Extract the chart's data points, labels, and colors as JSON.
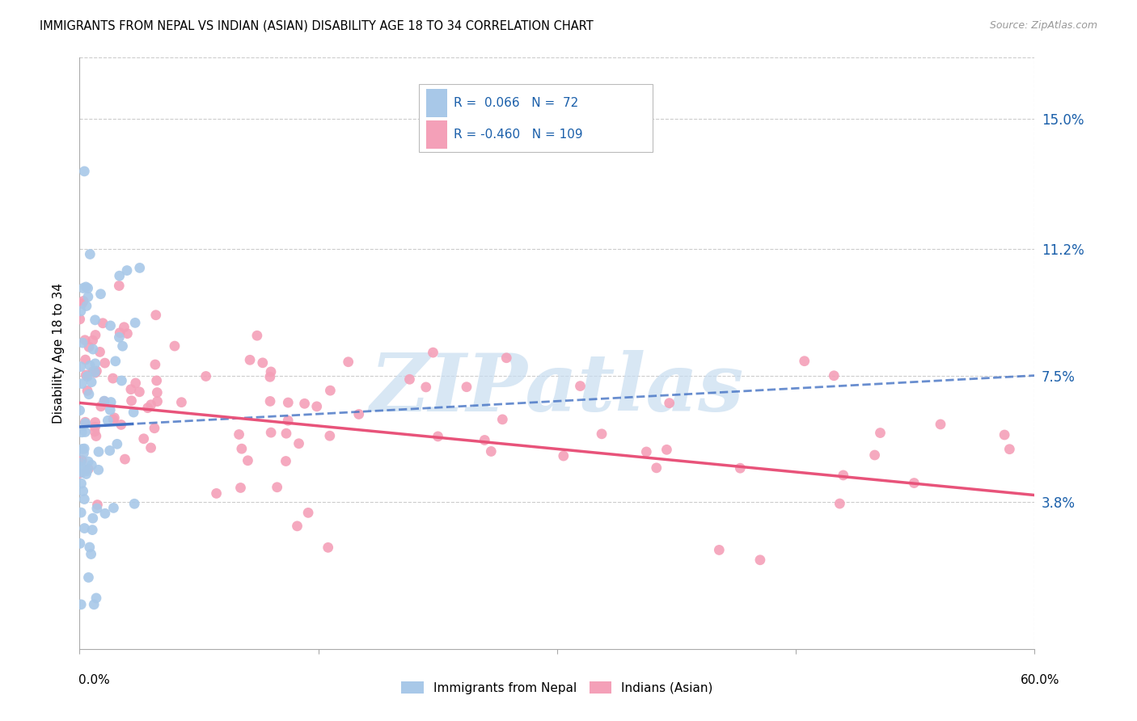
{
  "title": "IMMIGRANTS FROM NEPAL VS INDIAN (ASIAN) DISABILITY AGE 18 TO 34 CORRELATION CHART",
  "source": "Source: ZipAtlas.com",
  "ylabel": "Disability Age 18 to 34",
  "ytick_labels": [
    "3.8%",
    "7.5%",
    "11.2%",
    "15.0%"
  ],
  "ytick_values": [
    0.038,
    0.075,
    0.112,
    0.15
  ],
  "xlim": [
    0.0,
    0.6
  ],
  "ylim": [
    -0.005,
    0.168
  ],
  "nepal_R": 0.066,
  "nepal_N": 72,
  "indian_R": -0.46,
  "indian_N": 109,
  "nepal_color": "#a8c8e8",
  "nepal_line_color": "#4472c4",
  "indian_color": "#f4a0b8",
  "indian_line_color": "#e8537a",
  "background_color": "#ffffff",
  "grid_color": "#cccccc",
  "watermark_text": "ZIPatlas",
  "watermark_color": "#c8ddf0",
  "legend_text_color": "#1a5faa"
}
